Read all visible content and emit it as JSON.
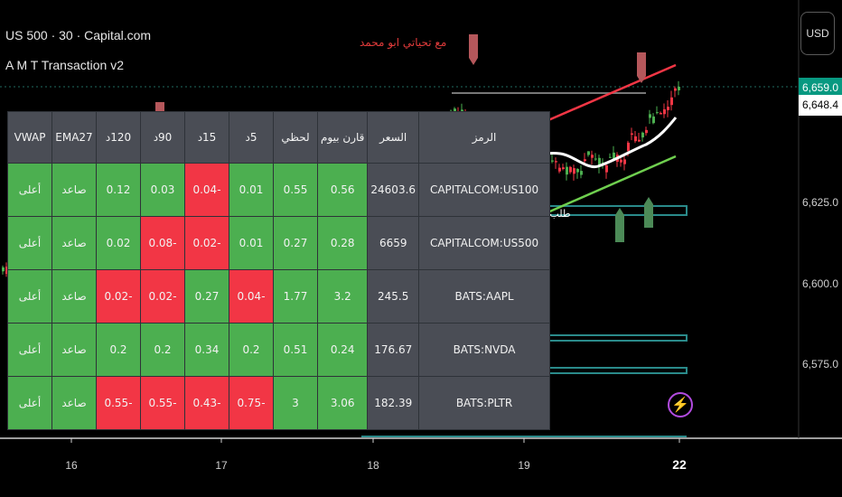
{
  "header": {
    "symbol_line": "US 500 · 30 · Capital.com",
    "indicator_name": "A M T Transaction v2",
    "signature": "مع تحياتي ابو محمد"
  },
  "price_axis": {
    "currency": "USD",
    "last_price": "6,659.0",
    "second_price": "6,648.4",
    "ticks": [
      "6,625.0",
      "6,600.0",
      "6,575.0"
    ]
  },
  "time_axis": {
    "ticks": [
      "16",
      "17",
      "18",
      "19",
      "22"
    ]
  },
  "annotations": {
    "demand_label": "طلب"
  },
  "table": {
    "headers": [
      "الرمز",
      "السعر",
      "قارن بيوم",
      "لحظي",
      "5د",
      "15د",
      "90د",
      "120د",
      "EMA27",
      "VWAP"
    ],
    "rows": [
      {
        "symbol": "CAPITALCOM:US100",
        "price": "24603.6",
        "cols": [
          {
            "v": "0.56",
            "c": "g"
          },
          {
            "v": "0.55",
            "c": "g"
          },
          {
            "v": "0.01",
            "c": "g"
          },
          {
            "v": "-0.04",
            "c": "r"
          },
          {
            "v": "0.03",
            "c": "g"
          },
          {
            "v": "0.12",
            "c": "g"
          },
          {
            "v": "صاعد",
            "c": "g"
          },
          {
            "v": "أعلى",
            "c": "g"
          }
        ]
      },
      {
        "symbol": "CAPITALCOM:US500",
        "price": "6659",
        "cols": [
          {
            "v": "0.28",
            "c": "g"
          },
          {
            "v": "0.27",
            "c": "g"
          },
          {
            "v": "0.01",
            "c": "g"
          },
          {
            "v": "-0.02",
            "c": "r"
          },
          {
            "v": "-0.08",
            "c": "r"
          },
          {
            "v": "0.02",
            "c": "g"
          },
          {
            "v": "صاعد",
            "c": "g"
          },
          {
            "v": "أعلى",
            "c": "g"
          }
        ]
      },
      {
        "symbol": "BATS:AAPL",
        "price": "245.5",
        "cols": [
          {
            "v": "3.2",
            "c": "g"
          },
          {
            "v": "1.77",
            "c": "g"
          },
          {
            "v": "-0.04",
            "c": "r"
          },
          {
            "v": "0.27",
            "c": "g"
          },
          {
            "v": "-0.02",
            "c": "r"
          },
          {
            "v": "-0.02",
            "c": "r"
          },
          {
            "v": "صاعد",
            "c": "g"
          },
          {
            "v": "أعلى",
            "c": "g"
          }
        ]
      },
      {
        "symbol": "BATS:NVDA",
        "price": "176.67",
        "cols": [
          {
            "v": "0.24",
            "c": "g"
          },
          {
            "v": "0.51",
            "c": "g"
          },
          {
            "v": "0.2",
            "c": "g"
          },
          {
            "v": "0.34",
            "c": "g"
          },
          {
            "v": "0.2",
            "c": "g"
          },
          {
            "v": "0.2",
            "c": "g"
          },
          {
            "v": "صاعد",
            "c": "g"
          },
          {
            "v": "أعلى",
            "c": "g"
          }
        ]
      },
      {
        "symbol": "BATS:PLTR",
        "price": "182.39",
        "cols": [
          {
            "v": "3.06",
            "c": "g"
          },
          {
            "v": "3",
            "c": "g"
          },
          {
            "v": "-0.75",
            "c": "r"
          },
          {
            "v": "-0.43",
            "c": "r"
          },
          {
            "v": "-0.55",
            "c": "r"
          },
          {
            "v": "-0.55",
            "c": "r"
          },
          {
            "v": "صاعد",
            "c": "g"
          },
          {
            "v": "أعلى",
            "c": "g"
          }
        ]
      }
    ]
  },
  "colors": {
    "up": "#4caf50",
    "down": "#f23645",
    "cell_bg": "#4a4d55",
    "channel_top": "#f23645",
    "channel_bottom": "#6fcf4f",
    "vwap_line": "#ffffff",
    "zone": "#2a8a8a"
  },
  "icons": [
    "lightning-icon"
  ]
}
